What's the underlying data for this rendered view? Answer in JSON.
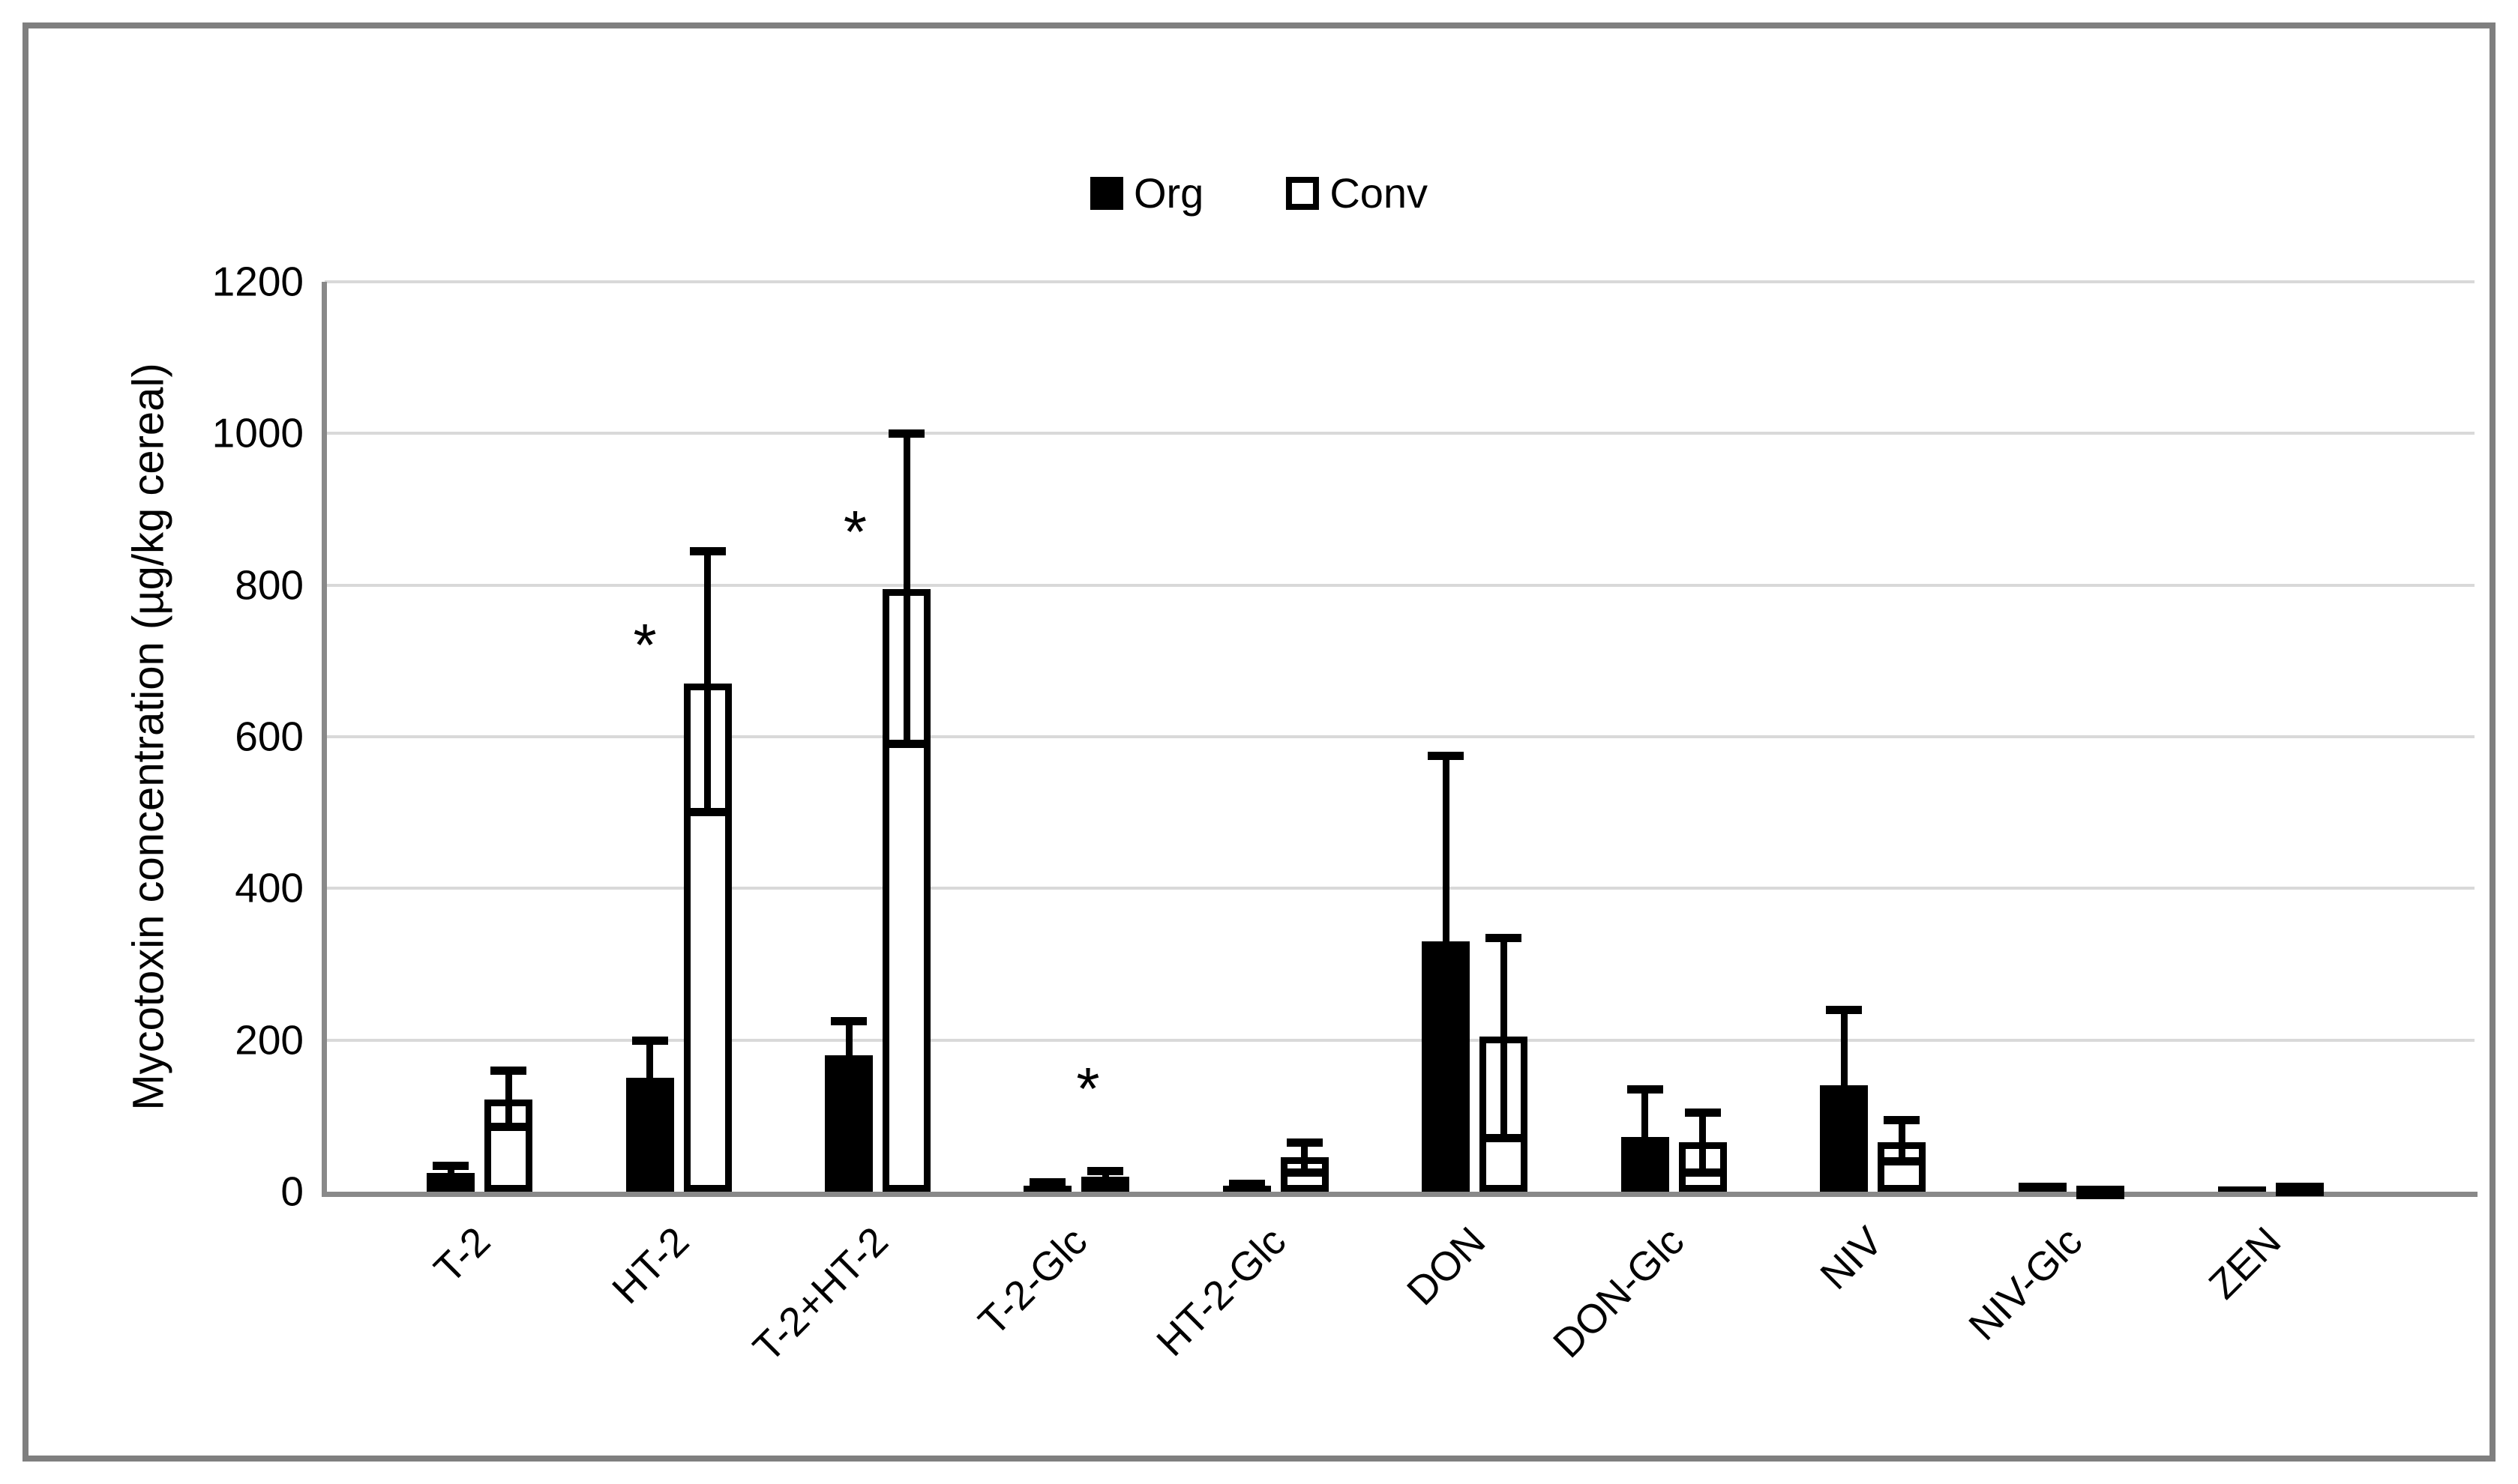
{
  "legend": {
    "items": [
      {
        "label": "Org",
        "swatch": "filled"
      },
      {
        "label": "Conv",
        "swatch": "outline"
      }
    ]
  },
  "chart_data": {
    "type": "bar",
    "title": "",
    "xlabel": "",
    "ylabel": "Mycotoxin concentration (µg/kg cereal)",
    "ylim": [
      0,
      1200
    ],
    "yticks": [
      0,
      200,
      400,
      600,
      800,
      1000,
      1200
    ],
    "grid": "horizontal",
    "legend_position": "top-center",
    "categories": [
      "T-2",
      "HT-2",
      "T-2+HT-2",
      "T-2-Glc",
      "HT-2-Glc",
      "DON",
      "DON-Glc",
      "NIV",
      "NIV-Glc",
      "ZEN"
    ],
    "series": [
      {
        "name": "Org",
        "fill": "#000000",
        "values": [
          25,
          150,
          180,
          8,
          8,
          330,
          72,
          140,
          12,
          7
        ],
        "err_plus": [
          10,
          50,
          45,
          5,
          3,
          245,
          63,
          100,
          0,
          0
        ],
        "err_minus": [
          0,
          0,
          0,
          0,
          0,
          0,
          0,
          0,
          0,
          0
        ]
      },
      {
        "name": "Conv",
        "fill": "#ffffff",
        "values": [
          122,
          670,
          795,
          20,
          45,
          205,
          65,
          65,
          8,
          12
        ],
        "err_plus": [
          38,
          175,
          205,
          8,
          20,
          130,
          40,
          30,
          0,
          0
        ],
        "err_minus": [
          37,
          170,
          205,
          8,
          20,
          135,
          40,
          25,
          0,
          0
        ]
      }
    ],
    "annotations": [
      {
        "text": "*",
        "category": "HT-2",
        "y": 730,
        "dx": -45
      },
      {
        "text": "*",
        "category": "T-2+HT-2",
        "y": 880,
        "dx": -30
      },
      {
        "text": "*",
        "category": "T-2-Glc",
        "y": 145,
        "dx": 15
      }
    ]
  },
  "colors": {
    "bar_org": "#000000",
    "bar_conv_fill": "#ffffff",
    "bar_conv_border": "#000000",
    "gridline": "#d9d9d9",
    "axis": "#898989",
    "frame_border": "#7f7f7f",
    "text": "#000000"
  }
}
